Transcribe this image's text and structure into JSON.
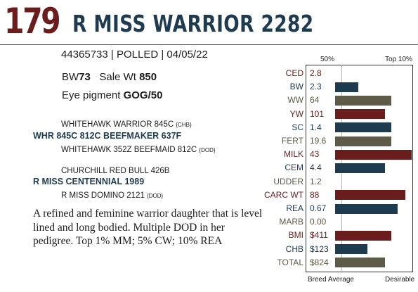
{
  "lot_number": "179",
  "animal_name": "R MISS WARRIOR 2282",
  "meta_line": "44365733 | POLLED | 04/05/22",
  "bw_label": "BW",
  "bw_value": "73",
  "sale_wt_label": "Sale Wt",
  "sale_wt_value": "850",
  "eye_pigment_label": "Eye pigment",
  "eye_pigment_value": "GOG/50",
  "pedigree": [
    {
      "name": "WHITEHAWK WARRIOR 845C",
      "tag": "{CHB}"
    },
    {
      "name": "WHR 845C 812C BEEFMAKER 637F",
      "tag": ""
    },
    {
      "name": "WHITEHAWK 352Z BEEFMAID 812C",
      "tag": "{DOD}"
    },
    {
      "name": "CHURCHILL RED BULL 426B",
      "tag": ""
    },
    {
      "name": "R MISS CENTENNIAL 1989",
      "tag": ""
    },
    {
      "name": "R MISS DOMINO 2121",
      "tag": "{DOD}"
    }
  ],
  "description": "A refined and feminine warrior daughter that is level lined and long bodied. Multiple DOD in her pedigree. Top 1% MM; 5% CW; 10% REA",
  "chart_data": {
    "type": "bar",
    "header_left": "50%",
    "header_right": "Top 10%",
    "footer_left": "Breed Average",
    "footer_right": "Desirable",
    "colors": {
      "red": "#6b1d1d",
      "blue": "#1f3b50",
      "gray": "#5d5a48"
    },
    "traits": [
      {
        "label": "CED",
        "value": "2.8",
        "level": 0,
        "color": "red"
      },
      {
        "label": "BW",
        "value": "2.3",
        "level": 0.3,
        "color": "blue"
      },
      {
        "label": "WW",
        "value": "64",
        "level": 0.73,
        "color": "gray"
      },
      {
        "label": "YW",
        "value": "101",
        "level": 0.65,
        "color": "red"
      },
      {
        "label": "SC",
        "value": "1.4",
        "level": 0.73,
        "color": "blue"
      },
      {
        "label": "FERT",
        "value": "19.6",
        "level": 0.73,
        "color": "gray"
      },
      {
        "label": "MILK",
        "value": "43",
        "level": 1.0,
        "color": "red"
      },
      {
        "label": "CEM",
        "value": "4.4",
        "level": 0.65,
        "color": "blue"
      },
      {
        "label": "UDDER",
        "value": "1.2",
        "level": 0,
        "color": "gray"
      },
      {
        "label": "CARC WT",
        "value": "88",
        "level": 0.92,
        "color": "red"
      },
      {
        "label": "REA",
        "value": "0.67",
        "level": 0.82,
        "color": "blue"
      },
      {
        "label": "MARB",
        "value": "0.00",
        "level": 0,
        "color": "gray"
      },
      {
        "label": "BMI",
        "value": "$411",
        "level": 0.73,
        "color": "red"
      },
      {
        "label": "CHB",
        "value": "$123",
        "level": 0.42,
        "color": "blue"
      },
      {
        "label": "TOTAL",
        "value": "$824",
        "level": 0.65,
        "color": "gray"
      }
    ]
  }
}
